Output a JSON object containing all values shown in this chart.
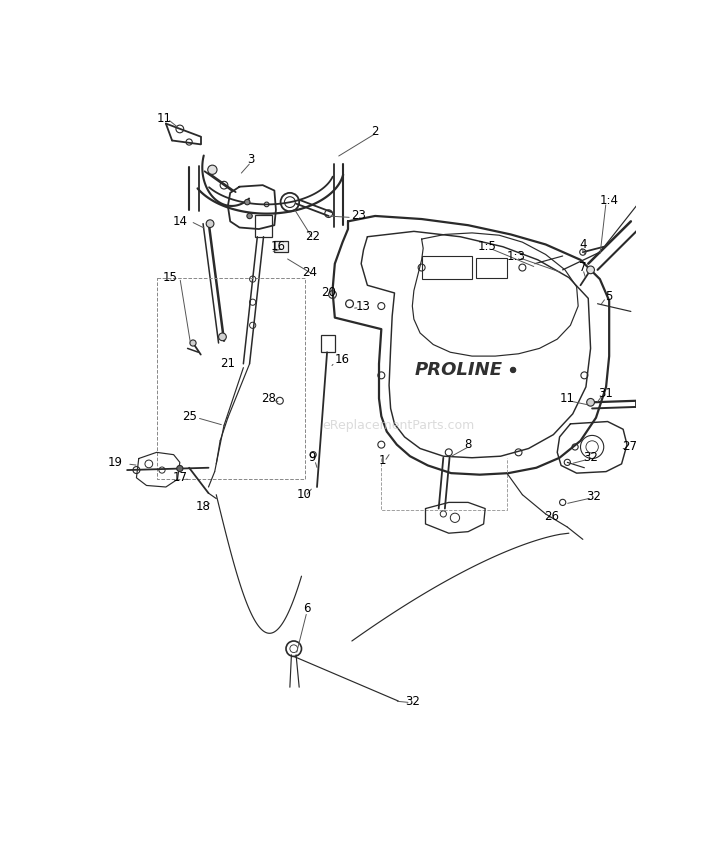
{
  "bg_color": "#ffffff",
  "watermark": "eReplacementParts.com",
  "watermark_color": "#c8c8c8",
  "line_color": "#2a2a2a",
  "label_color": "#000000",
  "label_fontsize": 8.5,
  "lw_main": 1.3,
  "lw_thin": 0.85,
  "lw_dashed": 0.7
}
